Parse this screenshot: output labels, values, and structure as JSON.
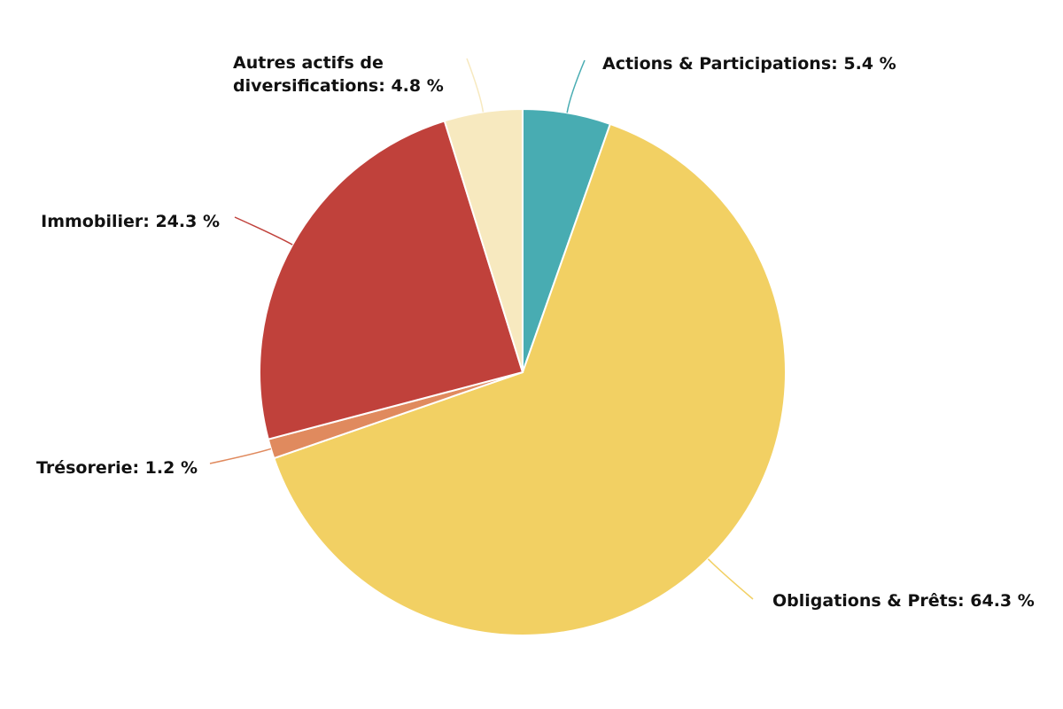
{
  "chart_data": {
    "type": "pie",
    "values": [
      5.4,
      64.3,
      1.2,
      24.3,
      4.8
    ],
    "value_labels": [
      "Actions & Participations: 5.4 %",
      "Obligations & Prêts: 64.3 %",
      "Trésorerie: 1.2 %",
      "Immobilier: 24.3 %",
      "Autres actifs de diversifications: 4.8 %"
    ],
    "colors": [
      "#48acb2",
      "#f2d063",
      "#e08a5e",
      "#c0413b",
      "#f7e9bf"
    ]
  }
}
